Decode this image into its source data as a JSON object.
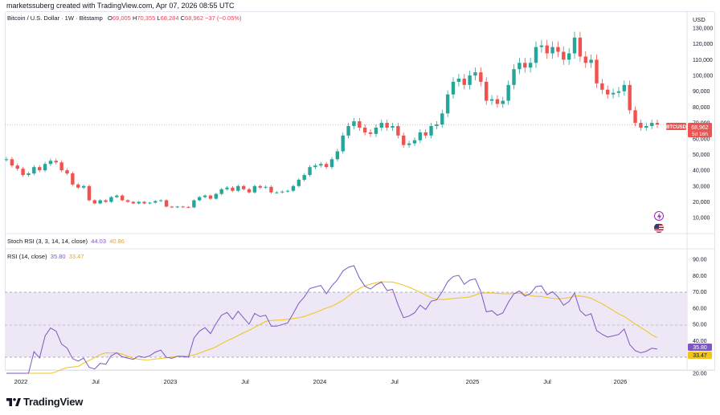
{
  "header": {
    "author_line": "marketssuberg created with TradingView.com, Apr 07, 2026 08:55 UTC"
  },
  "price_pane": {
    "symbol_line": "Bitcoin / U.S. Dollar · 1W · Bitstamp",
    "ohlc": {
      "open_label": "O",
      "open": "69,005",
      "high_label": "H",
      "high": "70,355",
      "low_label": "L",
      "low": "68,284",
      "close_label": "C",
      "close": "68,962",
      "change": "−37 (−0.05%)"
    },
    "currency": "USD",
    "y_ticks": [
      "130,000",
      "120,000",
      "110,000",
      "100,000",
      "90,000",
      "80,000",
      "70,000",
      "60,000",
      "50,000",
      "40,000",
      "30,000",
      "20,000",
      "10,000"
    ],
    "price_tag": {
      "symbol": "BTCUSD",
      "price": "68,962",
      "countdown": "5d 16h"
    }
  },
  "stoch_pane": {
    "label": "Stoch RSI (3, 3, 14, 14, close)",
    "k": "44.03",
    "d": "40.86"
  },
  "rsi_pane": {
    "label": "RSI (14, close)",
    "rsi": "35.80",
    "ma": "33.47",
    "y_ticks": [
      "90.00",
      "80.00",
      "70.00",
      "60.00",
      "50.00",
      "40.00",
      "30.00",
      "20.00"
    ]
  },
  "x_axis": {
    "labels": [
      "2022",
      "Jul",
      "2023",
      "Jul",
      "2024",
      "Jul",
      "2025",
      "Jul",
      "2026"
    ]
  },
  "brand": {
    "name": "TradingView"
  },
  "colors": {
    "up": "#26a69a",
    "down": "#ef5350",
    "rsi": "#7e57c2",
    "rsi_ma": "#f0c419",
    "band": "#ede7f6"
  },
  "icons": [
    "lightning-icon",
    "flag-icon",
    "tradingview-logo-icon"
  ],
  "chart_data": [
    {
      "type": "candlestick",
      "title": "Bitcoin / U.S. Dollar · 1W · Bitstamp",
      "ylabel": "USD",
      "ylim": [
        5000,
        130000
      ],
      "x_labels": [
        "2022",
        "Jul",
        "2023",
        "Jul",
        "2024",
        "Jul",
        "2025",
        "Jul",
        "2026"
      ],
      "weekly_close_approx": [
        47000,
        43000,
        41000,
        37000,
        38000,
        42000,
        40000,
        44000,
        46000,
        45000,
        40000,
        38000,
        31000,
        29000,
        30000,
        21000,
        19000,
        21000,
        20000,
        23000,
        24000,
        21000,
        20000,
        19000,
        20000,
        19000,
        19500,
        20500,
        21000,
        17000,
        16500,
        17000,
        16800,
        16500,
        21000,
        23000,
        24000,
        22000,
        25000,
        28000,
        29000,
        27000,
        30000,
        28000,
        26000,
        30000,
        29000,
        29500,
        26000,
        26000,
        26500,
        27000,
        30000,
        34000,
        37000,
        42000,
        43000,
        44000,
        42000,
        47000,
        52000,
        62000,
        68000,
        71000,
        67000,
        64000,
        63000,
        67000,
        70000,
        67000,
        68000,
        62000,
        56000,
        57000,
        59000,
        64000,
        62000,
        68000,
        69000,
        76000,
        88000,
        96000,
        98000,
        94000,
        100000,
        102000,
        96000,
        84000,
        85000,
        82000,
        84000,
        94000,
        104000,
        108000,
        105000,
        108000,
        118000,
        119000,
        114000,
        118000,
        115000,
        110000,
        114000,
        124000,
        112000,
        108000,
        110000,
        95000,
        91000,
        88000,
        89000,
        90000,
        94000,
        78000,
        70000,
        67000,
        68000,
        70000,
        68962
      ],
      "last": 68962
    },
    {
      "type": "line",
      "title": "RSI (14, close)",
      "ylim": [
        20,
        90
      ],
      "bands": [
        30,
        50,
        70
      ],
      "series": [
        {
          "name": "RSI",
          "last": 35.8
        },
        {
          "name": "RSI-based MA",
          "last": 33.47
        }
      ]
    }
  ]
}
